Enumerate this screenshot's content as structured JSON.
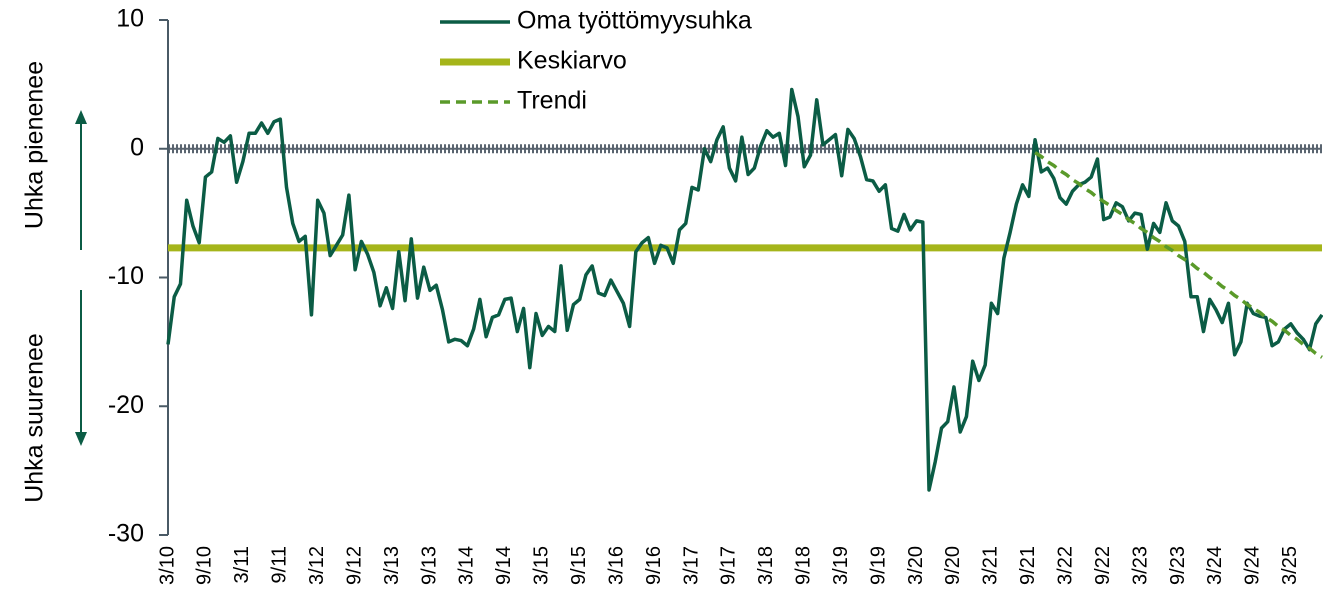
{
  "chart_data": {
    "type": "line",
    "annotations": [
      "Uhka pienenee",
      "Uhka suurenee"
    ],
    "categories": [
      "3/10",
      null,
      null,
      null,
      null,
      null,
      "9/10",
      null,
      null,
      null,
      null,
      null,
      "3/11",
      null,
      null,
      null,
      null,
      null,
      "9/11",
      null,
      null,
      null,
      null,
      null,
      "3/12",
      null,
      null,
      null,
      null,
      null,
      "9/12",
      null,
      null,
      null,
      null,
      null,
      "3/13",
      null,
      null,
      null,
      null,
      null,
      "9/13",
      null,
      null,
      null,
      null,
      null,
      "3/14",
      null,
      null,
      null,
      null,
      null,
      "9/14",
      null,
      null,
      null,
      null,
      null,
      "3/15",
      null,
      null,
      null,
      null,
      null,
      "9/15",
      null,
      null,
      null,
      null,
      null,
      "3/16",
      null,
      null,
      null,
      null,
      null,
      "9/16",
      null,
      null,
      null,
      null,
      null,
      "3/17",
      null,
      null,
      null,
      null,
      null,
      "9/17",
      null,
      null,
      null,
      null,
      null,
      "3/18",
      null,
      null,
      null,
      null,
      null,
      "9/18",
      null,
      null,
      null,
      null,
      null,
      "3/19",
      null,
      null,
      null,
      null,
      null,
      "9/19",
      null,
      null,
      null,
      null,
      null,
      "3/20",
      null,
      null,
      null,
      null,
      null,
      "9/20",
      null,
      null,
      null,
      null,
      null,
      "3/21",
      null,
      null,
      null,
      null,
      null,
      "9/21",
      null,
      null,
      null,
      null,
      null,
      "3/22",
      null,
      null,
      null,
      null,
      null,
      "9/22",
      null,
      null,
      null,
      null,
      null,
      "3/23",
      null,
      null,
      null,
      null,
      null,
      "9/23",
      null,
      null,
      null,
      null,
      null,
      "3/24",
      null,
      null,
      null,
      null,
      null,
      "9/24",
      null,
      null,
      null,
      null,
      null,
      "3/25",
      null,
      null,
      null,
      null,
      null
    ],
    "series": [
      {
        "name": "Oma työttömyysuhka",
        "color": "#0b5c45",
        "values": [
          -15.2,
          -11.5,
          -10.5,
          -4,
          -6,
          -7.3,
          -2.2,
          -1.8,
          0.8,
          0.5,
          1,
          -2.6,
          -1,
          1.2,
          1.2,
          2,
          1.2,
          2.1,
          2.3,
          -3,
          -5.8,
          -7.2,
          -6.8,
          -12.9,
          -4,
          -5,
          -8.3,
          -7.5,
          -6.7,
          -3.6,
          -9.4,
          -7.2,
          -8.2,
          -9.6,
          -12.2,
          -10.8,
          -12.4,
          -8,
          -11.8,
          -7,
          -11.6,
          -9.2,
          -11,
          -10.6,
          -12.5,
          -15,
          -14.8,
          -14.9,
          -15.3,
          -14,
          -11.7,
          -14.6,
          -13.1,
          -12.9,
          -11.7,
          -11.6,
          -14.2,
          -12.4,
          -17,
          -12.8,
          -14.5,
          -13.8,
          -14.2,
          -9.1,
          -14.1,
          -12.1,
          -11.7,
          -9.8,
          -9.1,
          -11.2,
          -11.4,
          -10.2,
          -11.1,
          -12,
          -13.8,
          -8,
          -7.3,
          -6.9,
          -8.9,
          -7.5,
          -7.7,
          -8.9,
          -6.3,
          -5.8,
          -3,
          -3.2,
          0,
          -1,
          0.7,
          1.7,
          -1.5,
          -2.5,
          0.9,
          -2,
          -1.5,
          0.2,
          1.4,
          0.9,
          1.2,
          -1.3,
          4.6,
          2.5,
          -1.4,
          -0.5,
          3.8,
          0.3,
          0.7,
          1.1,
          -2.1,
          1.5,
          0.8,
          -0.6,
          -2.4,
          -2.5,
          -3.3,
          -2.8,
          -6.2,
          -6.4,
          -5.1,
          -6.3,
          -5.6,
          -5.7,
          -26.5,
          -24.3,
          -21.7,
          -21.2,
          -18.5,
          -22,
          -20.8,
          -16.5,
          -18,
          -16.8,
          -12,
          -12.8,
          -8.5,
          -6.5,
          -4.3,
          -2.8,
          -3.7,
          0.7,
          -1.8,
          -1.5,
          -2.3,
          -3.8,
          -4.3,
          -3.3,
          -2.8,
          -2.6,
          -2.2,
          -0.8,
          -5.5,
          -5.3,
          -4.2,
          -4.5,
          -5.6,
          -5,
          -5.1,
          -7.8,
          -5.8,
          -6.5,
          -4.2,
          -5.6,
          -6,
          -7.2,
          -11.5,
          -11.5,
          -14.2,
          -11.7,
          -12.5,
          -13.5,
          -12,
          -16,
          -15,
          -12,
          -12.8,
          -13,
          -13.1,
          -15.3,
          -15,
          -14,
          -13.6,
          -14.3,
          -14.8,
          -15.6,
          -13.6,
          -12.9
        ]
      },
      {
        "name": "Keskiarvo",
        "color": "#a5b51a",
        "value": -7.7
      },
      {
        "name": "Trendi",
        "color": "#5a9a2a",
        "dashed": true,
        "values": [
          null,
          null,
          null,
          null,
          null,
          null,
          null,
          null,
          null,
          null,
          null,
          null,
          null,
          null,
          null,
          null,
          null,
          null,
          null,
          null,
          null,
          null,
          null,
          null,
          null,
          null,
          null,
          null,
          null,
          null,
          null,
          null,
          null,
          null,
          null,
          null,
          null,
          null,
          null,
          null,
          null,
          null,
          null,
          null,
          null,
          null,
          null,
          null,
          null,
          null,
          null,
          null,
          null,
          null,
          null,
          null,
          null,
          null,
          null,
          null,
          null,
          null,
          null,
          null,
          null,
          null,
          null,
          null,
          null,
          null,
          null,
          null,
          null,
          null,
          null,
          null,
          null,
          null,
          null,
          null,
          null,
          null,
          null,
          null,
          null,
          null,
          null,
          null,
          null,
          null,
          null,
          null,
          null,
          null,
          null,
          null,
          null,
          null,
          null,
          null,
          null,
          null,
          null,
          null,
          null,
          null,
          null,
          null,
          null,
          null,
          null,
          null,
          null,
          null,
          null,
          null,
          null,
          null,
          null,
          null,
          null,
          null,
          null,
          null,
          null,
          null,
          null,
          null,
          null,
          null,
          null,
          null,
          null,
          null,
          null,
          null,
          null,
          null,
          null,
          -0.3,
          -0.6,
          -1.0,
          -1.3,
          -1.7,
          -2.0,
          -2.4,
          -2.7,
          -3.1,
          -3.4,
          -3.8,
          -4.1,
          -4.4,
          -4.8,
          -5.1,
          -5.5,
          -5.8,
          -6.2,
          -6.5,
          -6.9,
          -7.2,
          -7.6,
          -7.9,
          -8.3,
          -8.6,
          -8.9,
          -9.3,
          -9.6,
          -10.0,
          -10.3,
          -10.7,
          -11.0,
          -11.4,
          -11.7,
          -12.1,
          -12.4,
          -12.7,
          -13.1,
          -13.4,
          -13.8,
          -14.1,
          -14.5,
          -14.8,
          -15.2,
          -15.5,
          -15.9,
          -16.2
        ]
      }
    ],
    "ylim": [
      -30,
      10
    ],
    "yticks": [
      10,
      0,
      -10,
      -20,
      -30
    ],
    "grid": false,
    "zero_line": true,
    "legend": "top"
  }
}
